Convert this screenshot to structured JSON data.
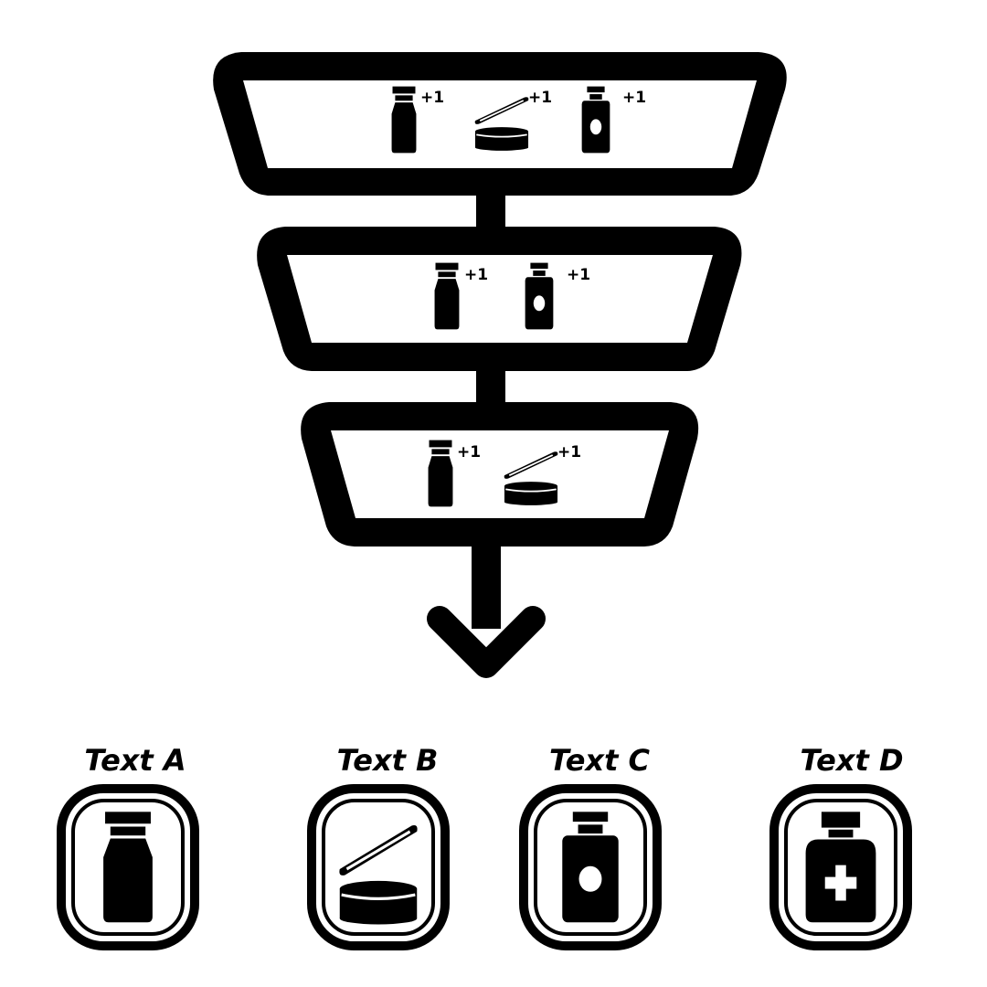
{
  "tiers": [
    {
      "items": [
        {
          "icon": "bottle-icon",
          "bonus": "+1"
        },
        {
          "icon": "jar-icon",
          "bonus": "+1"
        },
        {
          "icon": "round-label-bottle-icon",
          "bonus": "+1"
        }
      ]
    },
    {
      "items": [
        {
          "icon": "bottle-icon",
          "bonus": "+1"
        },
        {
          "icon": "round-label-bottle-icon",
          "bonus": "+1"
        }
      ]
    },
    {
      "items": [
        {
          "icon": "bottle-icon",
          "bonus": "+1"
        },
        {
          "icon": "jar-icon",
          "bonus": "+1"
        }
      ]
    }
  ],
  "legend": [
    {
      "label": "Text A",
      "icon": "bottle-icon"
    },
    {
      "label": "Text B",
      "icon": "jar-icon"
    },
    {
      "label": "Text C",
      "icon": "round-label-bottle-icon"
    },
    {
      "label": "Text D",
      "icon": "medicine-bottle-icon"
    }
  ],
  "colors": {
    "ink": "#000000",
    "background": "#ffffff"
  }
}
